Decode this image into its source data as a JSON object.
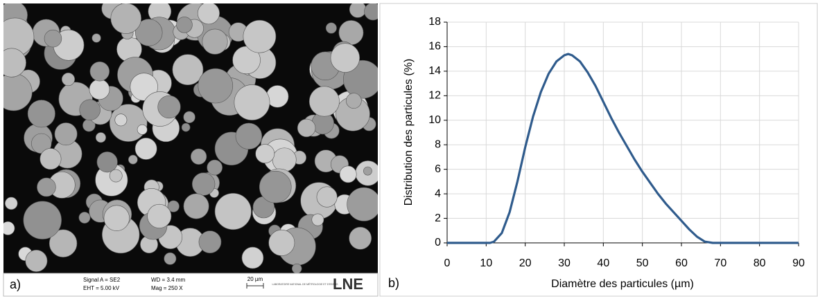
{
  "image_panel": {
    "label": "a)",
    "signal": "Signal A = SE2",
    "eht": "EHT = 5.00 kV",
    "wd": "WD = 3.4 mm",
    "mag": "Mag = 250 X",
    "scale": "20 µm",
    "logo_text": "LABORATOIRE NATIONAL DE MÉTROLOGIE ET D'ESSAIS",
    "logo": "LNE"
  },
  "chart_data": {
    "type": "line",
    "panel_label": "b)",
    "x_label": "Diamètre des particules (µm)",
    "y_label": "Distribution des particules (%)",
    "x": [
      0,
      10,
      11,
      12,
      14,
      16,
      18,
      20,
      22,
      24,
      26,
      28,
      30,
      31,
      32,
      34,
      36,
      38,
      40,
      42,
      44,
      46,
      48,
      50,
      52,
      54,
      56,
      58,
      60,
      62,
      64,
      66,
      68,
      70,
      80,
      90
    ],
    "series": [
      {
        "name": "Distribution",
        "color": "#2f5b8c",
        "values": [
          0,
          0,
          0,
          0.1,
          0.8,
          2.5,
          5,
          7.8,
          10.3,
          12.3,
          13.8,
          14.8,
          15.3,
          15.4,
          15.3,
          14.8,
          13.9,
          12.8,
          11.5,
          10.2,
          9,
          7.9,
          6.8,
          5.8,
          4.9,
          4,
          3.2,
          2.5,
          1.8,
          1.1,
          0.5,
          0.1,
          0,
          0,
          0,
          0
        ]
      }
    ],
    "xlim": [
      0,
      90
    ],
    "xticks": [
      0,
      10,
      20,
      30,
      40,
      50,
      60,
      70,
      80,
      90
    ],
    "ylim": [
      0,
      18
    ],
    "yticks": [
      0,
      2,
      4,
      6,
      8,
      10,
      12,
      14,
      16,
      18
    ],
    "grid": true
  }
}
